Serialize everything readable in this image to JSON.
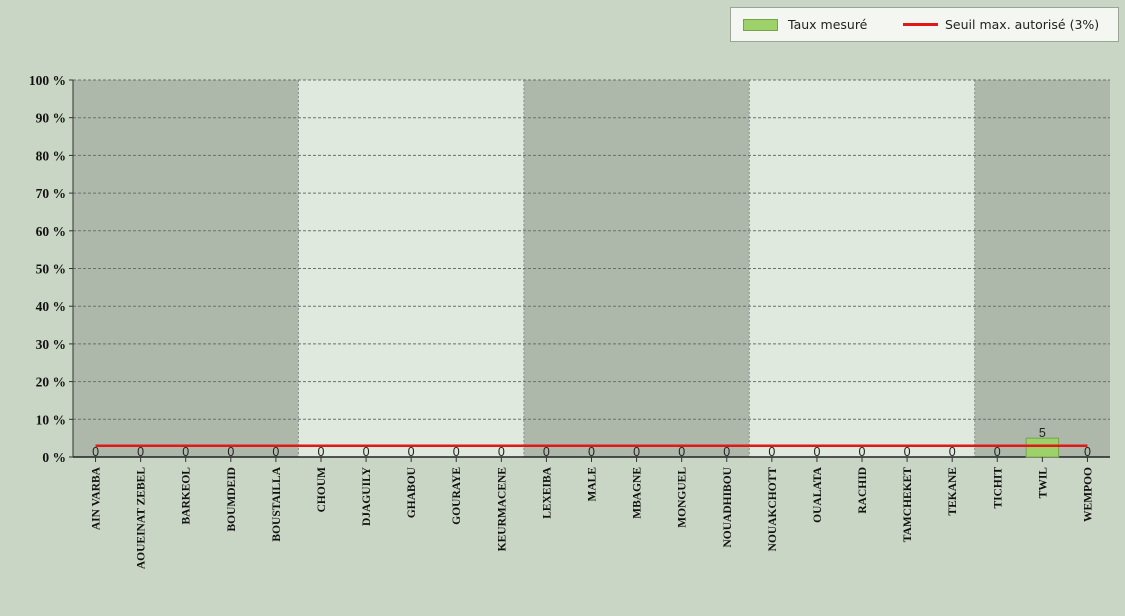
{
  "legend": {
    "bar_label": "Taux mesuré",
    "line_label": "Seuil max. autorisé (3%)"
  },
  "colors": {
    "background": "#cad6c5",
    "band_dark": "#adb8aa",
    "band_light": "#dfe9dd",
    "bar_fill": "#9dd16a",
    "threshold_line": "#e01818"
  },
  "chart_data": {
    "type": "bar",
    "categories": [
      "AIN VARBA",
      "AOUEINAT ZEBEL",
      "BARKEOL",
      "BOUMDEID",
      "BOUSTAILLA",
      "CHOUM",
      "DJAGUILY",
      "GHABOU",
      "GOURAYE",
      "KEURMACENE",
      "LEXEIBA",
      "MALE",
      "MBAGNE",
      "MONGUEL",
      "NOUADHIBOU",
      "NOUAKCHOTT",
      "OUALATA",
      "RACHID",
      "TAMCHEKET",
      "TEKANE",
      "TICHIT",
      "TWIL",
      "WEMPOO"
    ],
    "series": [
      {
        "name": "Taux mesuré",
        "type": "bar",
        "values": [
          0,
          0,
          0,
          0,
          0,
          0,
          0,
          0,
          0,
          0,
          0,
          0,
          0,
          0,
          0,
          0,
          0,
          0,
          0,
          0,
          0,
          5,
          0
        ]
      },
      {
        "name": "Seuil max. autorisé (3%)",
        "type": "line",
        "values": [
          3,
          3,
          3,
          3,
          3,
          3,
          3,
          3,
          3,
          3,
          3,
          3,
          3,
          3,
          3,
          3,
          3,
          3,
          3,
          3,
          3,
          3,
          3
        ]
      }
    ],
    "ylim": [
      0,
      100
    ],
    "y_ticks": [
      "0 %",
      "10 %",
      "20 %",
      "30 %",
      "40 %",
      "50 %",
      "60 %",
      "70 %",
      "80 %",
      "90 %",
      "100 %"
    ],
    "grid": true,
    "legend_position": "top-right"
  }
}
